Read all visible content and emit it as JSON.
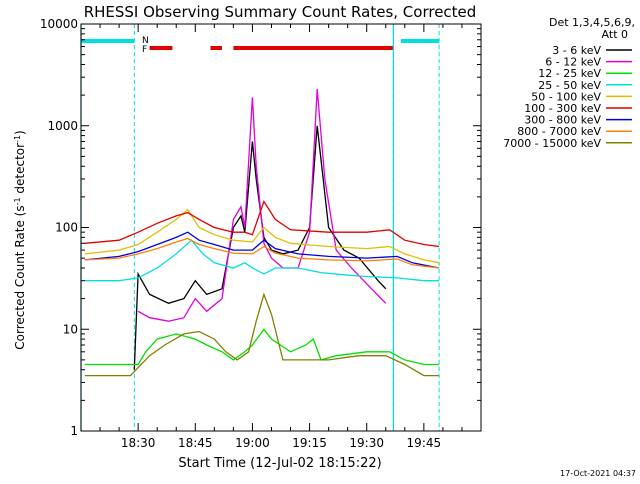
{
  "chart_data": {
    "type": "line",
    "title": "RHESSI Observing Summary Count Rates, Corrected",
    "xlabel": "Start Time (12-Jul-02 18:15:22)",
    "ylabel_main": "Corrected Count Rate (s",
    "ylabel_sup1": "-1",
    "ylabel_mid": " detector",
    "ylabel_sup2": "-1",
    "ylabel_end": ")",
    "yscale": "log",
    "ylim": [
      1,
      10000
    ],
    "xlim": [
      "18:15",
      "20:00"
    ],
    "yticks": [
      "1",
      "10",
      "100",
      "1000",
      "10000"
    ],
    "xticks": [
      "18:30",
      "18:45",
      "19:00",
      "19:15",
      "19:30",
      "19:45"
    ],
    "detector_info": "Det 1,3,4,5,6,9,",
    "attenuator_info": "Att 0",
    "timestamp": "17-Oct-2021 04:37",
    "flags": {
      "F": "F",
      "N": "N"
    },
    "legend_placement": "right",
    "series": [
      {
        "name": "3 - 6 keV",
        "color": "#000000"
      },
      {
        "name": "6 - 12 keV",
        "color": "#e000e0"
      },
      {
        "name": "12 - 25 keV",
        "color": "#00e000"
      },
      {
        "name": "25 - 50 keV",
        "color": "#00e0e0"
      },
      {
        "name": "50 - 100 keV",
        "color": "#e0c000"
      },
      {
        "name": "100 - 300 keV",
        "color": "#e00000"
      },
      {
        "name": "300 - 800 keV",
        "color": "#0000e0"
      },
      {
        "name": "800 - 7000 keV",
        "color": "#ff8000"
      },
      {
        "name": "7000 - 15000 keV",
        "color": "#808000"
      }
    ],
    "series_points": [
      [
        [
          "18:29",
          4
        ],
        [
          "18:30",
          35
        ],
        [
          "18:33",
          22
        ],
        [
          "18:38",
          18
        ],
        [
          "18:42",
          20
        ],
        [
          "18:45",
          30
        ],
        [
          "18:48",
          22
        ],
        [
          "18:52",
          25
        ],
        [
          "18:55",
          100
        ],
        [
          "18:57",
          130
        ],
        [
          "18:58",
          90
        ],
        [
          "19:00",
          700
        ],
        [
          "19:01",
          300
        ],
        [
          "19:03",
          80
        ],
        [
          "19:05",
          60
        ],
        [
          "19:08",
          55
        ],
        [
          "19:12",
          60
        ],
        [
          "19:15",
          100
        ],
        [
          "19:17",
          1000
        ],
        [
          "19:20",
          100
        ],
        [
          "19:24",
          60
        ],
        [
          "19:28",
          50
        ],
        [
          "19:33",
          30
        ],
        [
          "19:35",
          25
        ]
      ],
      [
        [
          "18:30",
          15
        ],
        [
          "18:33",
          13
        ],
        [
          "18:38",
          12
        ],
        [
          "18:42",
          13
        ],
        [
          "18:45",
          20
        ],
        [
          "18:48",
          15
        ],
        [
          "18:52",
          20
        ],
        [
          "18:55",
          120
        ],
        [
          "18:57",
          160
        ],
        [
          "18:58",
          100
        ],
        [
          "19:00",
          1900
        ],
        [
          "19:01",
          400
        ],
        [
          "19:03",
          70
        ],
        [
          "19:05",
          50
        ],
        [
          "19:08",
          40
        ],
        [
          "19:12",
          40
        ],
        [
          "19:15",
          90
        ],
        [
          "19:17",
          2300
        ],
        [
          "19:19",
          300
        ],
        [
          "19:22",
          60
        ],
        [
          "19:26",
          40
        ],
        [
          "19:30",
          28
        ],
        [
          "19:35",
          18
        ]
      ],
      [
        [
          "18:16",
          4.5
        ],
        [
          "18:30",
          4.5
        ],
        [
          "18:32",
          6
        ],
        [
          "18:35",
          8
        ],
        [
          "18:40",
          9
        ],
        [
          "18:45",
          8
        ],
        [
          "18:48",
          7
        ],
        [
          "18:52",
          6
        ],
        [
          "18:55",
          5
        ],
        [
          "18:58",
          6
        ],
        [
          "19:00",
          7
        ],
        [
          "19:03",
          10
        ],
        [
          "19:05",
          8
        ],
        [
          "19:10",
          6
        ],
        [
          "19:14",
          7
        ],
        [
          "19:16",
          8
        ],
        [
          "19:18",
          5
        ],
        [
          "19:22",
          5.5
        ],
        [
          "19:30",
          6
        ],
        [
          "19:36",
          6
        ],
        [
          "19:40",
          5
        ],
        [
          "19:45",
          4.5
        ],
        [
          "19:49",
          4.5
        ]
      ],
      [
        [
          "18:16",
          30
        ],
        [
          "18:25",
          30
        ],
        [
          "18:30",
          32
        ],
        [
          "18:35",
          40
        ],
        [
          "18:40",
          55
        ],
        [
          "18:44",
          75
        ],
        [
          "18:47",
          55
        ],
        [
          "18:50",
          45
        ],
        [
          "18:55",
          40
        ],
        [
          "18:58",
          45
        ],
        [
          "19:00",
          40
        ],
        [
          "19:03",
          35
        ],
        [
          "19:06",
          40
        ],
        [
          "19:12",
          40
        ],
        [
          "19:18",
          36
        ],
        [
          "19:25",
          34
        ],
        [
          "19:30",
          33
        ],
        [
          "19:38",
          32
        ],
        [
          "19:45",
          30
        ],
        [
          "19:49",
          30
        ]
      ],
      [
        [
          "18:16",
          55
        ],
        [
          "18:25",
          60
        ],
        [
          "18:30",
          68
        ],
        [
          "18:35",
          90
        ],
        [
          "18:40",
          120
        ],
        [
          "18:43",
          150
        ],
        [
          "18:46",
          100
        ],
        [
          "18:50",
          85
        ],
        [
          "18:55",
          75
        ],
        [
          "19:00",
          72
        ],
        [
          "19:03",
          100
        ],
        [
          "19:06",
          80
        ],
        [
          "19:10",
          70
        ],
        [
          "19:20",
          65
        ],
        [
          "19:30",
          62
        ],
        [
          "19:36",
          65
        ],
        [
          "19:40",
          55
        ],
        [
          "19:45",
          48
        ],
        [
          "19:49",
          45
        ]
      ],
      [
        [
          "18:16",
          70
        ],
        [
          "18:25",
          75
        ],
        [
          "18:30",
          90
        ],
        [
          "18:35",
          110
        ],
        [
          "18:40",
          130
        ],
        [
          "18:43",
          140
        ],
        [
          "18:46",
          120
        ],
        [
          "18:50",
          100
        ],
        [
          "18:55",
          90
        ],
        [
          "18:58",
          90
        ],
        [
          "19:00",
          85
        ],
        [
          "19:03",
          180
        ],
        [
          "19:06",
          120
        ],
        [
          "19:10",
          95
        ],
        [
          "19:20",
          90
        ],
        [
          "19:30",
          90
        ],
        [
          "19:36",
          95
        ],
        [
          "19:40",
          75
        ],
        [
          "19:45",
          68
        ],
        [
          "19:49",
          65
        ]
      ],
      [
        [
          "18:16",
          48
        ],
        [
          "18:25",
          52
        ],
        [
          "18:30",
          58
        ],
        [
          "18:35",
          68
        ],
        [
          "18:40",
          80
        ],
        [
          "18:43",
          90
        ],
        [
          "18:46",
          75
        ],
        [
          "18:50",
          68
        ],
        [
          "18:55",
          60
        ],
        [
          "19:00",
          60
        ],
        [
          "19:03",
          75
        ],
        [
          "19:06",
          62
        ],
        [
          "19:12",
          55
        ],
        [
          "19:20",
          52
        ],
        [
          "19:30",
          50
        ],
        [
          "19:38",
          52
        ],
        [
          "19:42",
          45
        ],
        [
          "19:49",
          40
        ]
      ],
      [
        [
          "18:16",
          48
        ],
        [
          "18:25",
          50
        ],
        [
          "18:30",
          55
        ],
        [
          "18:35",
          62
        ],
        [
          "18:40",
          72
        ],
        [
          "18:43",
          78
        ],
        [
          "18:46",
          68
        ],
        [
          "18:50",
          62
        ],
        [
          "18:55",
          56
        ],
        [
          "19:00",
          55
        ],
        [
          "19:03",
          65
        ],
        [
          "19:06",
          56
        ],
        [
          "19:12",
          50
        ],
        [
          "19:20",
          48
        ],
        [
          "19:30",
          47
        ],
        [
          "19:38",
          49
        ],
        [
          "19:42",
          43
        ],
        [
          "19:49",
          40
        ]
      ],
      [
        [
          "18:16",
          3.5
        ],
        [
          "18:28",
          3.5
        ],
        [
          "18:30",
          4.2
        ],
        [
          "18:33",
          5.5
        ],
        [
          "18:37",
          7
        ],
        [
          "18:42",
          9
        ],
        [
          "18:46",
          9.5
        ],
        [
          "18:50",
          8
        ],
        [
          "18:53",
          6
        ],
        [
          "18:56",
          5
        ],
        [
          "18:59",
          6
        ],
        [
          "19:01",
          12
        ],
        [
          "19:03",
          22
        ],
        [
          "19:05",
          14
        ],
        [
          "19:08",
          5
        ],
        [
          "19:12",
          5
        ],
        [
          "19:20",
          5
        ],
        [
          "19:28",
          5.5
        ],
        [
          "19:35",
          5.5
        ],
        [
          "19:40",
          4.5
        ],
        [
          "19:45",
          3.5
        ],
        [
          "19:49",
          3.5
        ]
      ]
    ],
    "flag_bars": [
      [
        "18:33",
        "18:39"
      ],
      [
        "18:49",
        "18:52"
      ],
      [
        "18:55",
        "19:37"
      ]
    ],
    "saa_bars": [
      [
        "18:15",
        "18:29"
      ],
      [
        "19:39",
        "19:49"
      ]
    ],
    "vertical_markers": [
      "18:29",
      "19:37",
      "19:49"
    ],
    "solid_markers": [
      "18:15",
      "19:37"
    ]
  }
}
